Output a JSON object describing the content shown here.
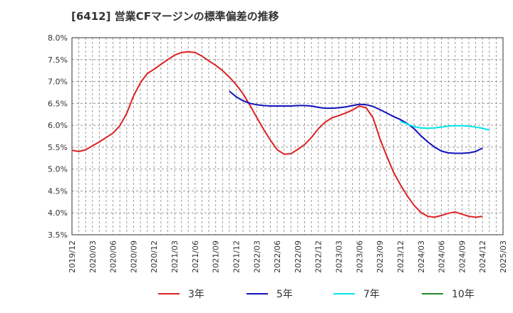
{
  "chart_data": {
    "type": "line",
    "title": "[6412]  営業CFマージンの標準偏差の推移",
    "xlabel": "",
    "ylabel": "",
    "ylim": [
      3.5,
      8.0
    ],
    "yticks": [
      "3.5%",
      "4.0%",
      "4.5%",
      "5.0%",
      "5.5%",
      "6.0%",
      "6.5%",
      "7.0%",
      "7.5%",
      "8.0%"
    ],
    "xticks": [
      "2019/12",
      "2020/03",
      "2020/06",
      "2020/09",
      "2020/12",
      "2021/03",
      "2021/06",
      "2021/09",
      "2021/12",
      "2022/03",
      "2022/06",
      "2022/09",
      "2022/12",
      "2023/03",
      "2023/06",
      "2023/09",
      "2023/12",
      "2024/03",
      "2024/06",
      "2024/09",
      "2024/12",
      "2025/03"
    ],
    "grid": true,
    "legend_position": "bottom",
    "series": [
      {
        "name": "3年",
        "color": "#dd2222",
        "points": [
          [
            "2019/12",
            5.43
          ],
          [
            "2020/01",
            5.4
          ],
          [
            "2020/02",
            5.44
          ],
          [
            "2020/03",
            5.53
          ],
          [
            "2020/04",
            5.62
          ],
          [
            "2020/05",
            5.72
          ],
          [
            "2020/06",
            5.82
          ],
          [
            "2020/07",
            5.99
          ],
          [
            "2020/08",
            6.27
          ],
          [
            "2020/09",
            6.67
          ],
          [
            "2020/10",
            6.97
          ],
          [
            "2020/11",
            7.18
          ],
          [
            "2020/12",
            7.28
          ],
          [
            "2021/01",
            7.39
          ],
          [
            "2021/02",
            7.5
          ],
          [
            "2021/03",
            7.6
          ],
          [
            "2021/04",
            7.66
          ],
          [
            "2021/05",
            7.68
          ],
          [
            "2021/06",
            7.66
          ],
          [
            "2021/07",
            7.58
          ],
          [
            "2021/08",
            7.47
          ],
          [
            "2021/09",
            7.37
          ],
          [
            "2021/10",
            7.25
          ],
          [
            "2021/11",
            7.1
          ],
          [
            "2021/12",
            6.93
          ],
          [
            "2022/01",
            6.72
          ],
          [
            "2022/02",
            6.46
          ],
          [
            "2022/03",
            6.18
          ],
          [
            "2022/04",
            5.91
          ],
          [
            "2022/05",
            5.66
          ],
          [
            "2022/06",
            5.44
          ],
          [
            "2022/07",
            5.34
          ],
          [
            "2022/08",
            5.35
          ],
          [
            "2022/09",
            5.45
          ],
          [
            "2022/10",
            5.56
          ],
          [
            "2022/11",
            5.72
          ],
          [
            "2022/12",
            5.92
          ],
          [
            "2023/01",
            6.07
          ],
          [
            "2023/02",
            6.17
          ],
          [
            "2023/03",
            6.22
          ],
          [
            "2023/04",
            6.28
          ],
          [
            "2023/05",
            6.35
          ],
          [
            "2023/06",
            6.44
          ],
          [
            "2023/07",
            6.4
          ],
          [
            "2023/08",
            6.17
          ],
          [
            "2023/09",
            5.7
          ],
          [
            "2023/10",
            5.3
          ],
          [
            "2023/11",
            4.93
          ],
          [
            "2023/12",
            4.64
          ],
          [
            "2024/01",
            4.39
          ],
          [
            "2024/02",
            4.17
          ],
          [
            "2024/03",
            4.01
          ],
          [
            "2024/04",
            3.92
          ],
          [
            "2024/05",
            3.9
          ],
          [
            "2024/06",
            3.94
          ],
          [
            "2024/07",
            3.99
          ],
          [
            "2024/08",
            4.02
          ],
          [
            "2024/09",
            3.97
          ],
          [
            "2024/10",
            3.92
          ],
          [
            "2024/11",
            3.9
          ],
          [
            "2024/12",
            3.92
          ]
        ]
      },
      {
        "name": "5年",
        "color": "#1111bb",
        "points": [
          [
            "2021/11",
            6.78
          ],
          [
            "2021/12",
            6.65
          ],
          [
            "2022/01",
            6.56
          ],
          [
            "2022/02",
            6.5
          ],
          [
            "2022/03",
            6.47
          ],
          [
            "2022/04",
            6.45
          ],
          [
            "2022/05",
            6.44
          ],
          [
            "2022/06",
            6.44
          ],
          [
            "2022/07",
            6.44
          ],
          [
            "2022/08",
            6.44
          ],
          [
            "2022/09",
            6.45
          ],
          [
            "2022/10",
            6.45
          ],
          [
            "2022/11",
            6.44
          ],
          [
            "2022/12",
            6.41
          ],
          [
            "2023/01",
            6.39
          ],
          [
            "2023/02",
            6.39
          ],
          [
            "2023/03",
            6.4
          ],
          [
            "2023/04",
            6.42
          ],
          [
            "2023/05",
            6.45
          ],
          [
            "2023/06",
            6.48
          ],
          [
            "2023/07",
            6.47
          ],
          [
            "2023/08",
            6.43
          ],
          [
            "2023/09",
            6.36
          ],
          [
            "2023/10",
            6.28
          ],
          [
            "2023/11",
            6.2
          ],
          [
            "2023/12",
            6.13
          ],
          [
            "2024/01",
            6.04
          ],
          [
            "2024/02",
            5.92
          ],
          [
            "2024/03",
            5.76
          ],
          [
            "2024/04",
            5.62
          ],
          [
            "2024/05",
            5.5
          ],
          [
            "2024/06",
            5.41
          ],
          [
            "2024/07",
            5.37
          ],
          [
            "2024/08",
            5.36
          ],
          [
            "2024/09",
            5.36
          ],
          [
            "2024/10",
            5.37
          ],
          [
            "2024/11",
            5.4
          ],
          [
            "2024/12",
            5.48
          ]
        ]
      },
      {
        "name": "7年",
        "color": "#00e5ee",
        "points": [
          [
            "2023/12",
            6.09
          ],
          [
            "2024/01",
            6.03
          ],
          [
            "2024/02",
            5.97
          ],
          [
            "2024/03",
            5.94
          ],
          [
            "2024/04",
            5.93
          ],
          [
            "2024/05",
            5.94
          ],
          [
            "2024/06",
            5.96
          ],
          [
            "2024/07",
            5.98
          ],
          [
            "2024/08",
            5.99
          ],
          [
            "2024/09",
            5.99
          ],
          [
            "2024/10",
            5.98
          ],
          [
            "2024/11",
            5.96
          ],
          [
            "2024/12",
            5.93
          ],
          [
            "2025/01",
            5.89
          ]
        ]
      },
      {
        "name": "10年",
        "color": "#228822",
        "points": []
      }
    ]
  }
}
